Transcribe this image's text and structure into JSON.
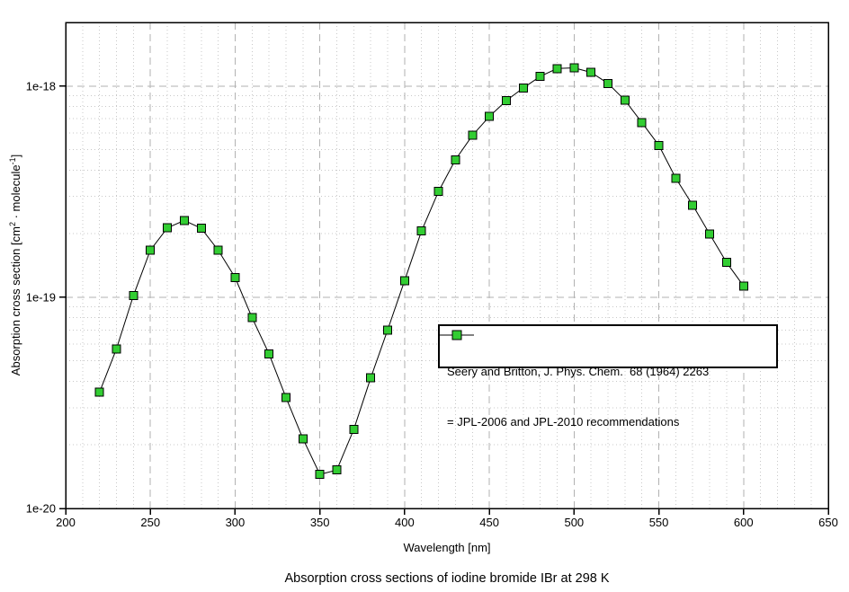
{
  "chart_data": {
    "type": "line",
    "title": "Absorption cross sections of iodine bromide IBr at 298 K",
    "xlabel": "Wavelength [nm]",
    "ylabel_parts": [
      {
        "text": "Absorption cross section [cm",
        "sup": false
      },
      {
        "text": "2",
        "sup": true
      },
      {
        "text": " · molecule",
        "sup": false
      },
      {
        "text": "-1",
        "sup": true
      },
      {
        "text": "]",
        "sup": false
      }
    ],
    "legend": {
      "line1": "Seery and Britton, J. Phys. Chem.  68 (1964) 2263",
      "line2": "= JPL-2006 and JPL-2010 recommendations",
      "position": "center-right"
    },
    "x": [
      220,
      230,
      240,
      250,
      260,
      270,
      280,
      290,
      300,
      310,
      320,
      330,
      340,
      350,
      360,
      370,
      380,
      390,
      400,
      410,
      420,
      430,
      440,
      450,
      460,
      470,
      480,
      490,
      500,
      510,
      520,
      530,
      540,
      550,
      560,
      570,
      580,
      590,
      600
    ],
    "y": [
      3.55e-20,
      5.7e-20,
      1.02e-19,
      1.67e-19,
      2.13e-19,
      2.31e-19,
      2.12e-19,
      1.67e-19,
      1.24e-19,
      8e-20,
      5.4e-20,
      3.35e-20,
      2.14e-20,
      1.45e-20,
      1.52e-20,
      2.37e-20,
      4.15e-20,
      7e-20,
      1.2e-19,
      2.06e-19,
      3.17e-19,
      4.48e-19,
      5.84e-19,
      7.17e-19,
      8.53e-19,
      9.79e-19,
      1.11e-18,
      1.21e-18,
      1.22e-18,
      1.16e-18,
      1.03e-18,
      8.56e-19,
      6.72e-19,
      5.24e-19,
      3.66e-19,
      2.73e-19,
      1.99e-19,
      1.46e-19,
      1.13e-19
    ],
    "xlim": [
      200,
      650
    ],
    "ylim": [
      1e-20,
      2e-18
    ],
    "x_major_ticks": [
      200,
      250,
      300,
      350,
      400,
      450,
      500,
      550,
      600,
      650
    ],
    "x_minor_step": 10,
    "y_scale": "log",
    "y_tick_labels": [
      {
        "value": 1e-18,
        "label": "1e-18"
      },
      {
        "value": 1e-19,
        "label": "1e-19"
      },
      {
        "value": 1e-20,
        "label": "1e-20"
      }
    ],
    "grid": true,
    "legend_marker": "square",
    "colors": {
      "marker_fill": "#32cd32",
      "marker_stroke": "#000000",
      "line": "#000000",
      "grid_minor": "#c8c8c8",
      "grid_major": "#b2b2b2",
      "frame": "#000000",
      "background": "#ffffff",
      "text": "#000000"
    }
  }
}
